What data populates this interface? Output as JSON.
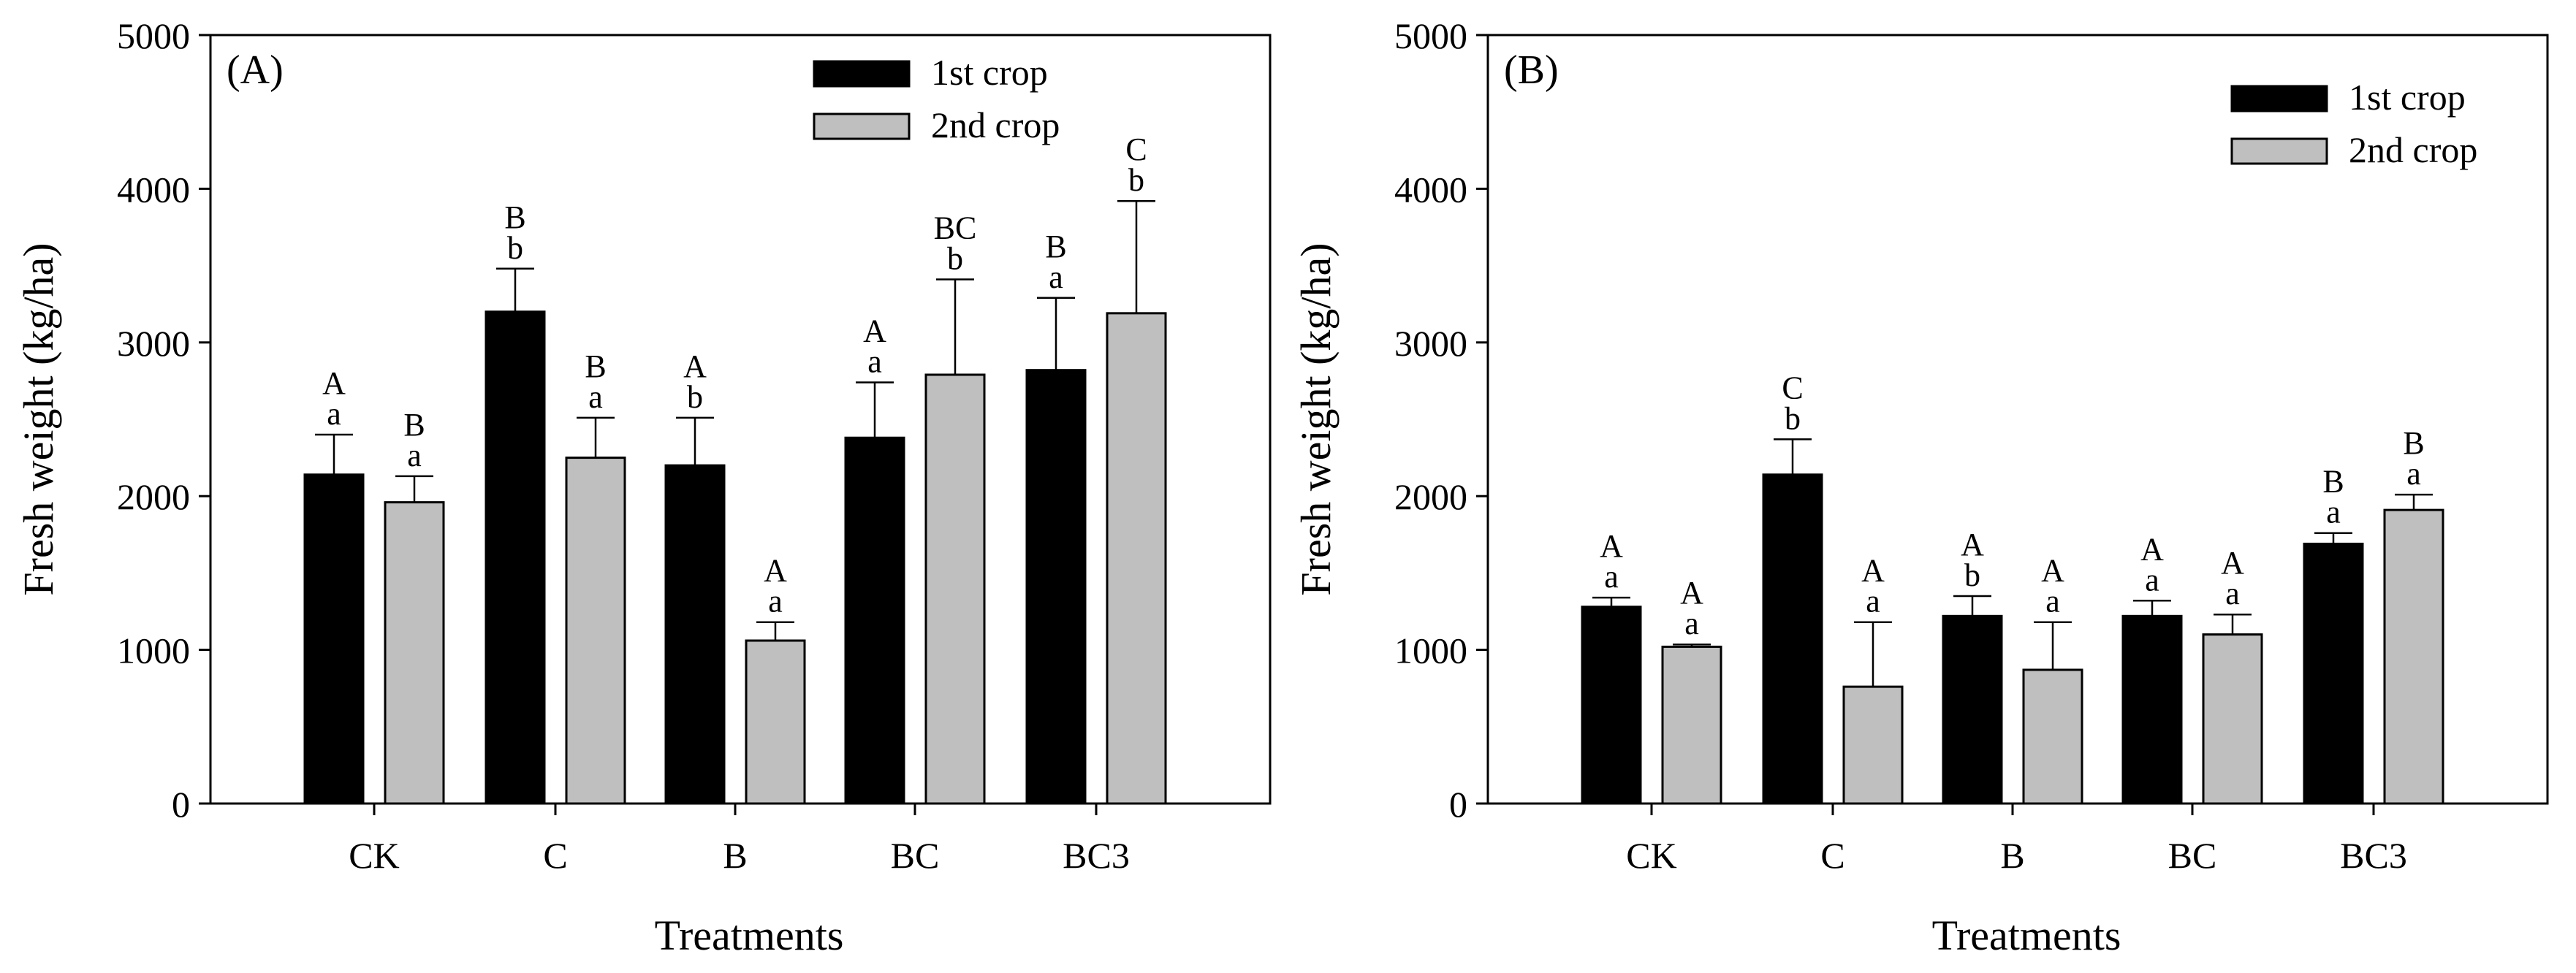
{
  "colors": {
    "series1": "#000000",
    "series2": "#bfbfbf",
    "axis": "#000000",
    "background": "#ffffff"
  },
  "chart_data": [
    {
      "type": "bar",
      "panel_label": "(A)",
      "title": "",
      "xlabel": "Treatments",
      "ylabel": "Fresh weight (kg/ha)",
      "ylim": [
        0,
        5000
      ],
      "yticks": [
        0,
        1000,
        2000,
        3000,
        4000,
        5000
      ],
      "categories": [
        "CK",
        "C",
        "B",
        "BC",
        "BC3"
      ],
      "legend_position": "top-right",
      "series": [
        {
          "name": "1st crop",
          "values": [
            2140,
            3200,
            2200,
            2380,
            2820
          ],
          "errors": [
            260,
            280,
            310,
            360,
            470
          ],
          "letters_upper": [
            "A",
            "B",
            "A",
            "A",
            "B"
          ],
          "letters_lower": [
            "a",
            "b",
            "b",
            "a",
            "a"
          ]
        },
        {
          "name": "2nd crop",
          "values": [
            1960,
            2250,
            1060,
            2790,
            3190
          ],
          "errors": [
            170,
            260,
            120,
            620,
            730
          ],
          "letters_upper": [
            "B",
            "B",
            "A",
            "BC",
            "C"
          ],
          "letters_lower": [
            "a",
            "a",
            "a",
            "b",
            "b"
          ]
        }
      ]
    },
    {
      "type": "bar",
      "panel_label": "(B)",
      "title": "",
      "xlabel": "Treatments",
      "ylabel": "Fresh weight (kg/ha)",
      "ylim": [
        0,
        5000
      ],
      "yticks": [
        0,
        1000,
        2000,
        3000,
        4000,
        5000
      ],
      "categories": [
        "CK",
        "C",
        "B",
        "BC",
        "BC3"
      ],
      "legend_position": "top-right",
      "series": [
        {
          "name": "1st crop",
          "values": [
            1280,
            2140,
            1220,
            1220,
            1690
          ],
          "errors": [
            60,
            230,
            130,
            100,
            70
          ],
          "letters_upper": [
            "A",
            "C",
            "A",
            "A",
            "B"
          ],
          "letters_lower": [
            "a",
            "b",
            "b",
            "a",
            "a"
          ]
        },
        {
          "name": "2nd crop",
          "values": [
            1020,
            760,
            870,
            1100,
            1910
          ],
          "errors": [
            15,
            420,
            310,
            130,
            100
          ],
          "letters_upper": [
            "A",
            "A",
            "A",
            "A",
            "B"
          ],
          "letters_lower": [
            "a",
            "a",
            "a",
            "a",
            "a"
          ]
        }
      ]
    }
  ]
}
